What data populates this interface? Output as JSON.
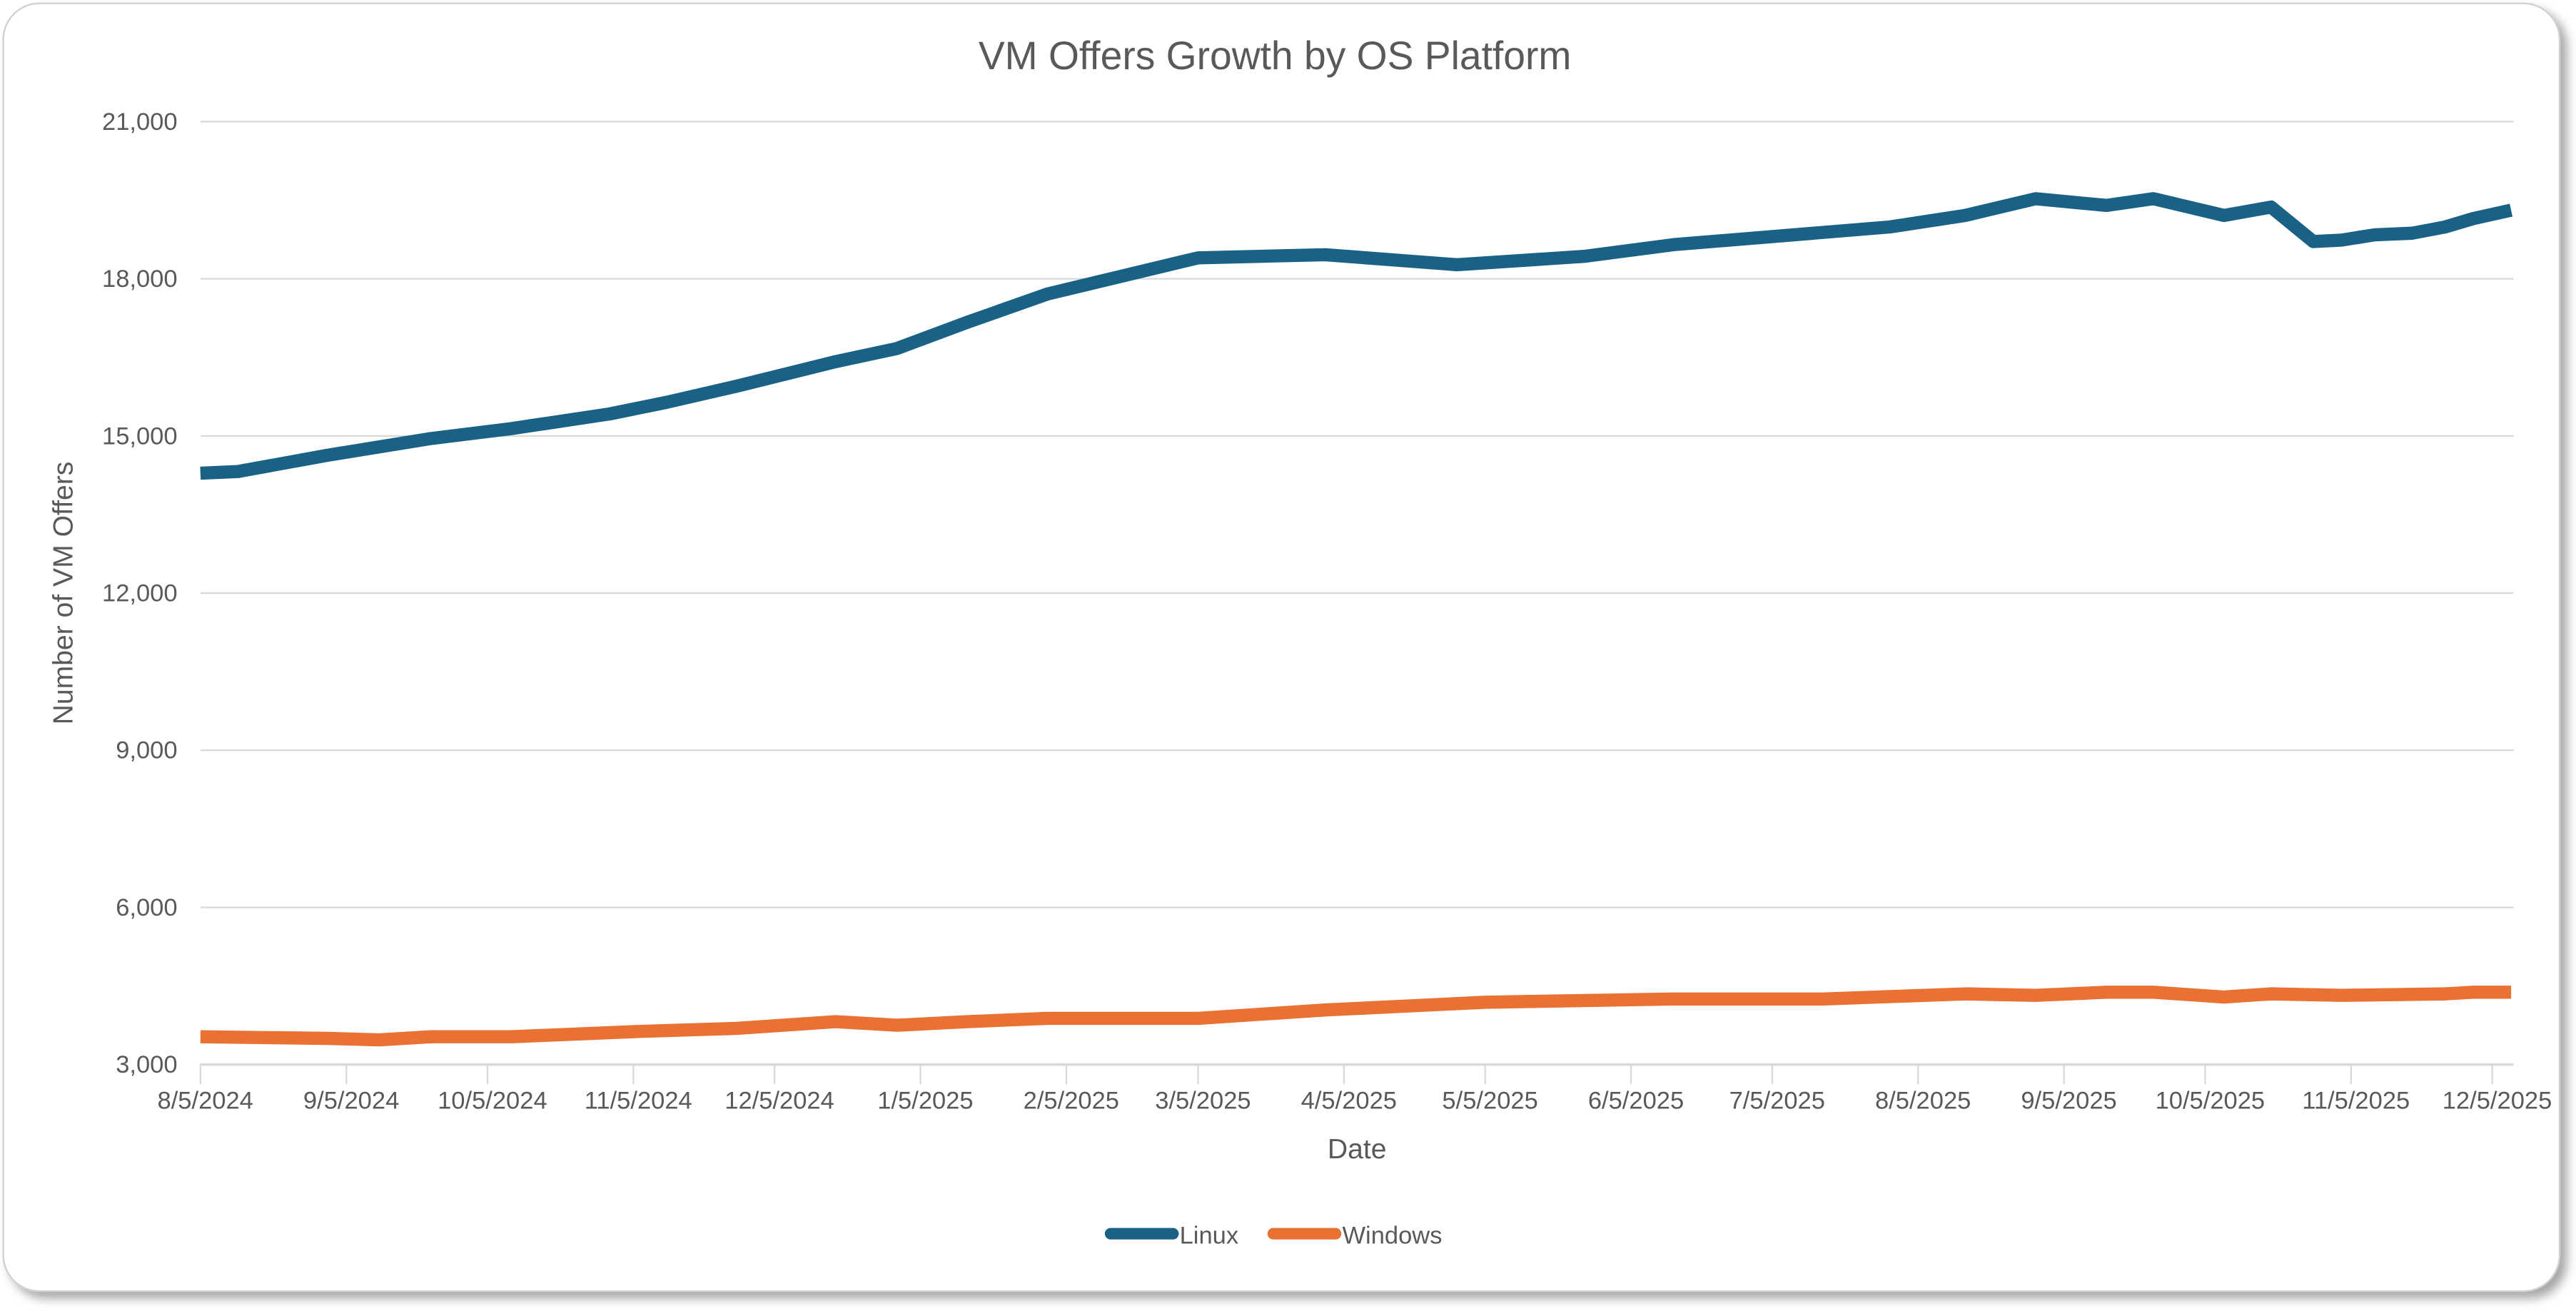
{
  "chart_data": {
    "type": "line",
    "title": "VM Offers Growth by OS Platform",
    "xlabel": "Date",
    "ylabel": "Number of VM Offers",
    "ylim": [
      3000,
      21000
    ],
    "yticks": [
      3000,
      6000,
      9000,
      12000,
      15000,
      18000,
      21000
    ],
    "ytick_labels": [
      "3,000",
      "6,000",
      "9,000",
      "12,000",
      "15,000",
      "18,000",
      "21,000"
    ],
    "xlim": [
      "2024-08-05",
      "2025-12-09"
    ],
    "xtick_labels": [
      "8/5/2024",
      "9/5/2024",
      "10/5/2024",
      "11/5/2024",
      "12/5/2024",
      "1/5/2025",
      "2/5/2025",
      "3/5/2025",
      "4/5/2025",
      "5/5/2025",
      "6/5/2025",
      "7/5/2025",
      "8/5/2025",
      "9/5/2025",
      "10/5/2025",
      "11/5/2025",
      "12/5/2025"
    ],
    "grid": true,
    "legend": "bottom",
    "series": [
      {
        "name": "Linux",
        "color": "#1A6285",
        "points": [
          [
            "2024-08-05",
            14290
          ],
          [
            "2024-08-13",
            14320
          ],
          [
            "2024-09-01",
            14630
          ],
          [
            "2024-09-23",
            14950
          ],
          [
            "2024-10-10",
            15140
          ],
          [
            "2024-10-31",
            15420
          ],
          [
            "2024-11-12",
            15640
          ],
          [
            "2024-11-27",
            15950
          ],
          [
            "2024-12-18",
            16420
          ],
          [
            "2024-12-31",
            16670
          ],
          [
            "2025-01-15",
            17170
          ],
          [
            "2025-02-01",
            17710
          ],
          [
            "2025-03-05",
            18400
          ],
          [
            "2025-04-01",
            18460
          ],
          [
            "2025-04-29",
            18270
          ],
          [
            "2025-05-26",
            18430
          ],
          [
            "2025-06-14",
            18650
          ],
          [
            "2025-07-30",
            18990
          ],
          [
            "2025-08-15",
            19210
          ],
          [
            "2025-08-30",
            19530
          ],
          [
            "2025-09-14",
            19400
          ],
          [
            "2025-09-24",
            19530
          ],
          [
            "2025-10-09",
            19210
          ],
          [
            "2025-10-19",
            19370
          ],
          [
            "2025-10-28",
            18710
          ],
          [
            "2025-11-03",
            18740
          ],
          [
            "2025-11-10",
            18840
          ],
          [
            "2025-11-18",
            18870
          ],
          [
            "2025-11-25",
            18990
          ],
          [
            "2025-12-01",
            19150
          ],
          [
            "2025-12-09",
            19310
          ]
        ]
      },
      {
        "name": "Windows",
        "color": "#E97132",
        "points": [
          [
            "2024-08-05",
            3530
          ],
          [
            "2024-09-01",
            3500
          ],
          [
            "2024-09-12",
            3470
          ],
          [
            "2024-09-23",
            3530
          ],
          [
            "2024-10-10",
            3530
          ],
          [
            "2024-11-06",
            3630
          ],
          [
            "2024-11-27",
            3690
          ],
          [
            "2024-12-18",
            3820
          ],
          [
            "2024-12-31",
            3750
          ],
          [
            "2025-01-15",
            3820
          ],
          [
            "2025-02-01",
            3880
          ],
          [
            "2025-03-05",
            3880
          ],
          [
            "2025-04-01",
            4040
          ],
          [
            "2025-05-05",
            4190
          ],
          [
            "2025-06-14",
            4250
          ],
          [
            "2025-07-16",
            4250
          ],
          [
            "2025-08-15",
            4350
          ],
          [
            "2025-08-30",
            4320
          ],
          [
            "2025-09-14",
            4380
          ],
          [
            "2025-09-24",
            4380
          ],
          [
            "2025-10-09",
            4290
          ],
          [
            "2025-10-19",
            4350
          ],
          [
            "2025-11-03",
            4320
          ],
          [
            "2025-11-25",
            4350
          ],
          [
            "2025-12-01",
            4380
          ],
          [
            "2025-12-09",
            4380
          ]
        ]
      }
    ]
  }
}
